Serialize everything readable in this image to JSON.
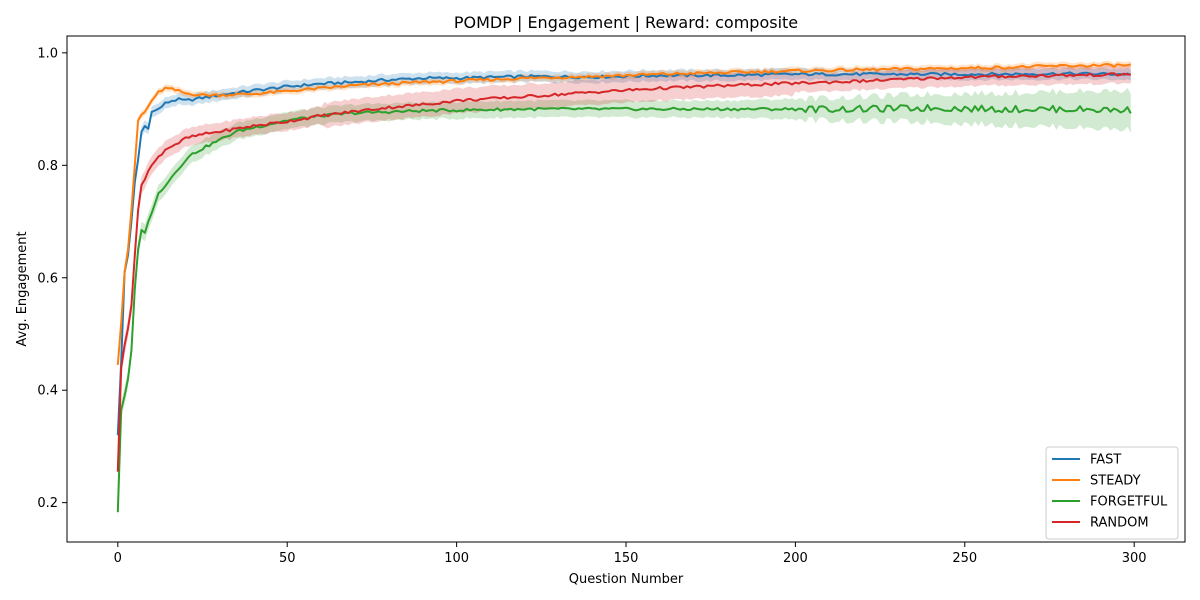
{
  "chart_data": {
    "type": "line",
    "title": "POMDP | Engagement | Reward: composite",
    "xlabel": "Question Number",
    "ylabel": "Avg. Engagement",
    "xlim": [
      -15,
      315
    ],
    "ylim": [
      0.13,
      1.03
    ],
    "xticks": [
      "0",
      "50",
      "100",
      "150",
      "200",
      "250",
      "300"
    ],
    "yticks": [
      "0.2",
      "0.4",
      "0.6",
      "0.8",
      "1.0"
    ],
    "grid": false,
    "legend_position": "lower-right",
    "shaded_band": "variability band around each series",
    "series": [
      {
        "name": "FAST",
        "color": "#1f77b4",
        "points": [
          [
            0,
            0.32
          ],
          [
            1,
            0.45
          ],
          [
            2,
            0.61
          ],
          [
            3,
            0.64
          ],
          [
            4,
            0.7
          ],
          [
            5,
            0.77
          ],
          [
            6,
            0.81
          ],
          [
            7,
            0.86
          ],
          [
            8,
            0.87
          ],
          [
            9,
            0.865
          ],
          [
            10,
            0.895
          ],
          [
            12,
            0.9
          ],
          [
            14,
            0.91
          ],
          [
            16,
            0.915
          ],
          [
            18,
            0.917
          ],
          [
            20,
            0.915
          ],
          [
            25,
            0.92
          ],
          [
            30,
            0.925
          ],
          [
            40,
            0.933
          ],
          [
            50,
            0.94
          ],
          [
            60,
            0.945
          ],
          [
            70,
            0.948
          ],
          [
            80,
            0.952
          ],
          [
            90,
            0.955
          ],
          [
            100,
            0.955
          ],
          [
            120,
            0.958
          ],
          [
            140,
            0.957
          ],
          [
            160,
            0.96
          ],
          [
            180,
            0.96
          ],
          [
            200,
            0.962
          ],
          [
            220,
            0.962
          ],
          [
            240,
            0.962
          ],
          [
            260,
            0.962
          ],
          [
            280,
            0.963
          ],
          [
            299,
            0.962
          ]
        ],
        "band": 0.01
      },
      {
        "name": "STEADY",
        "color": "#ff7f0e",
        "points": [
          [
            0,
            0.445
          ],
          [
            1,
            0.52
          ],
          [
            2,
            0.61
          ],
          [
            3,
            0.65
          ],
          [
            4,
            0.72
          ],
          [
            5,
            0.8
          ],
          [
            6,
            0.88
          ],
          [
            7,
            0.89
          ],
          [
            8,
            0.895
          ],
          [
            9,
            0.905
          ],
          [
            10,
            0.915
          ],
          [
            12,
            0.93
          ],
          [
            14,
            0.937
          ],
          [
            16,
            0.935
          ],
          [
            18,
            0.932
          ],
          [
            20,
            0.928
          ],
          [
            25,
            0.925
          ],
          [
            30,
            0.925
          ],
          [
            40,
            0.927
          ],
          [
            50,
            0.932
          ],
          [
            60,
            0.937
          ],
          [
            70,
            0.942
          ],
          [
            80,
            0.945
          ],
          [
            90,
            0.948
          ],
          [
            100,
            0.95
          ],
          [
            120,
            0.955
          ],
          [
            140,
            0.958
          ],
          [
            160,
            0.962
          ],
          [
            180,
            0.965
          ],
          [
            200,
            0.968
          ],
          [
            220,
            0.97
          ],
          [
            240,
            0.972
          ],
          [
            260,
            0.974
          ],
          [
            280,
            0.977
          ],
          [
            299,
            0.978
          ]
        ],
        "band": 0.006
      },
      {
        "name": "FORGETFUL",
        "color": "#2ca02c",
        "points": [
          [
            0,
            0.183
          ],
          [
            1,
            0.365
          ],
          [
            2,
            0.39
          ],
          [
            3,
            0.42
          ],
          [
            4,
            0.47
          ],
          [
            5,
            0.58
          ],
          [
            6,
            0.65
          ],
          [
            7,
            0.685
          ],
          [
            8,
            0.68
          ],
          [
            9,
            0.7
          ],
          [
            10,
            0.715
          ],
          [
            12,
            0.75
          ],
          [
            14,
            0.765
          ],
          [
            16,
            0.78
          ],
          [
            18,
            0.795
          ],
          [
            20,
            0.81
          ],
          [
            22,
            0.82
          ],
          [
            25,
            0.83
          ],
          [
            30,
            0.845
          ],
          [
            35,
            0.86
          ],
          [
            40,
            0.867
          ],
          [
            50,
            0.88
          ],
          [
            60,
            0.888
          ],
          [
            70,
            0.893
          ],
          [
            80,
            0.895
          ],
          [
            90,
            0.897
          ],
          [
            100,
            0.898
          ],
          [
            120,
            0.9
          ],
          [
            140,
            0.9
          ],
          [
            160,
            0.9
          ],
          [
            180,
            0.9
          ],
          [
            200,
            0.9
          ],
          [
            220,
            0.9
          ],
          [
            240,
            0.902
          ],
          [
            260,
            0.9
          ],
          [
            280,
            0.9
          ],
          [
            299,
            0.898
          ]
        ],
        "band": 0.015
      },
      {
        "name": "RANDOM",
        "color": "#d62728",
        "points": [
          [
            0,
            0.255
          ],
          [
            1,
            0.44
          ],
          [
            2,
            0.48
          ],
          [
            3,
            0.51
          ],
          [
            4,
            0.55
          ],
          [
            5,
            0.64
          ],
          [
            6,
            0.72
          ],
          [
            7,
            0.765
          ],
          [
            8,
            0.775
          ],
          [
            9,
            0.79
          ],
          [
            10,
            0.8
          ],
          [
            12,
            0.815
          ],
          [
            14,
            0.828
          ],
          [
            16,
            0.835
          ],
          [
            18,
            0.84
          ],
          [
            20,
            0.848
          ],
          [
            25,
            0.855
          ],
          [
            30,
            0.86
          ],
          [
            40,
            0.87
          ],
          [
            50,
            0.878
          ],
          [
            60,
            0.888
          ],
          [
            70,
            0.896
          ],
          [
            80,
            0.903
          ],
          [
            90,
            0.908
          ],
          [
            100,
            0.915
          ],
          [
            120,
            0.922
          ],
          [
            140,
            0.93
          ],
          [
            160,
            0.937
          ],
          [
            180,
            0.942
          ],
          [
            200,
            0.946
          ],
          [
            220,
            0.95
          ],
          [
            240,
            0.955
          ],
          [
            260,
            0.958
          ],
          [
            280,
            0.96
          ],
          [
            299,
            0.962
          ]
        ],
        "band": 0.012
      }
    ]
  }
}
